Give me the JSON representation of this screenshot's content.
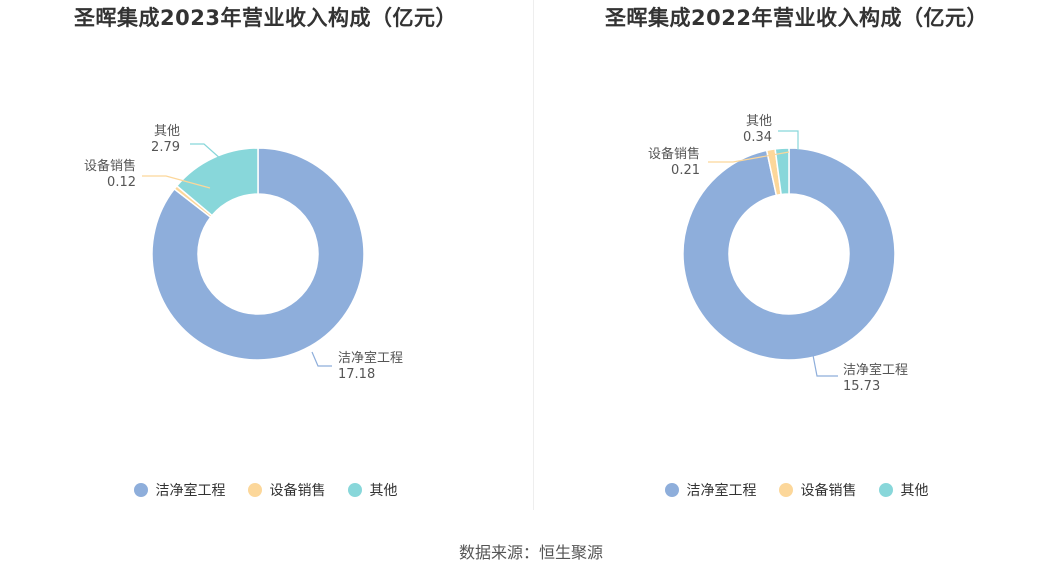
{
  "colors": {
    "clean_room": "#8eaedb",
    "equipment_sales": "#fcd79a",
    "other": "#88d7da"
  },
  "source_text": "数据来源：恒生聚源",
  "chart_data": [
    {
      "type": "pie",
      "variant": "donut",
      "title": "圣晖集成2023年营业收入构成（亿元）",
      "categories": [
        "洁净室工程",
        "设备销售",
        "其他"
      ],
      "values": [
        17.18,
        0.12,
        2.79
      ],
      "value_labels": [
        "17.18",
        "0.12",
        "2.79"
      ],
      "legend": [
        "洁净室工程",
        "设备销售",
        "其他"
      ],
      "legend_position": "bottom"
    },
    {
      "type": "pie",
      "variant": "donut",
      "title": "圣晖集成2022年营业收入构成（亿元）",
      "categories": [
        "洁净室工程",
        "设备销售",
        "其他"
      ],
      "values": [
        15.73,
        0.21,
        0.34
      ],
      "value_labels": [
        "15.73",
        "0.21",
        "0.34"
      ],
      "legend": [
        "洁净室工程",
        "设备销售",
        "其他"
      ],
      "legend_position": "bottom"
    }
  ]
}
